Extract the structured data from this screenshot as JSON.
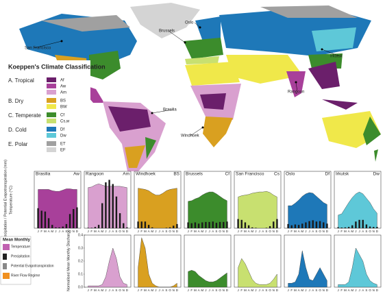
{
  "map": {
    "legend_title": "Koeppen's Climate Classification",
    "groups": [
      {
        "name": "A. Tropical",
        "classes": [
          {
            "code": "Af",
            "color": "#6b1f6b"
          },
          {
            "code": "Aw",
            "color": "#a8409a"
          },
          {
            "code": "Am",
            "color": "#d9a0cf"
          }
        ]
      },
      {
        "name": "B. Dry",
        "classes": [
          {
            "code": "BS",
            "color": "#d9a020"
          },
          {
            "code": "BW",
            "color": "#f0e84a"
          }
        ]
      },
      {
        "name": "C. Temperate",
        "classes": [
          {
            "code": "Cf",
            "color": "#3c8c2c"
          },
          {
            "code": "Cs,w",
            "color": "#c8e070"
          }
        ]
      },
      {
        "name": "D. Cold",
        "classes": [
          {
            "code": "Df",
            "color": "#1e78b8"
          },
          {
            "code": "Dw",
            "color": "#5ec8d8"
          }
        ]
      },
      {
        "name": "E. Polar",
        "classes": [
          {
            "code": "ET",
            "color": "#a0a0a0"
          },
          {
            "code": "EF",
            "color": "#d4d4d4"
          }
        ]
      }
    ],
    "cities": [
      "San Francisco",
      "Brussels",
      "Oslo",
      "Irkutsk",
      "Rangoon",
      "Brasilia",
      "Windhoek"
    ]
  },
  "panel_axes": {
    "upper_ylabel": "Precipitation / Potential Evapotranspiration (mm)",
    "upper_ylabel2": "Temperature (°C)",
    "lower_ylabel": "Normalised Mean Monthly Discharge",
    "temperature_ylim": [
      -40,
      40
    ],
    "precipitation_ylim": [
      0,
      600
    ],
    "discharge_ylim": [
      0,
      0.4
    ],
    "discharge_yticks": [
      {
        "value": 0,
        "label": "0.0"
      },
      0.1,
      0.2,
      0.3,
      0.4
    ],
    "months": [
      "J",
      "F",
      "M",
      "A",
      "M",
      "J",
      "J",
      "A",
      "S",
      "O",
      "N",
      "D"
    ]
  },
  "panel_legend": {
    "title": "Mean Monthly",
    "items": [
      "Temperature",
      "Precipitation",
      "Potential Evapotranspiration",
      "River Flow Regime"
    ]
  },
  "chart_data": [
    {
      "type": "climograph",
      "title": "Brasilia",
      "climate": "Aw",
      "color": "#a8409a",
      "temperature": [
        22,
        22,
        22,
        22,
        20,
        19,
        19,
        21,
        23,
        23,
        22,
        22
      ],
      "precipitation": [
        240,
        210,
        200,
        120,
        40,
        10,
        10,
        20,
        50,
        170,
        230,
        250
      ]
    },
    {
      "type": "climograph",
      "title": "Rangoon",
      "climate": "Am",
      "color": "#d9a0cf",
      "temperature": [
        25,
        26,
        29,
        31,
        29,
        27,
        27,
        27,
        27,
        27,
        26,
        25
      ],
      "precipitation": [
        5,
        5,
        15,
        40,
        300,
        550,
        580,
        530,
        380,
        180,
        60,
        10
      ],
      "discharge": [
        0.01,
        0.01,
        0.01,
        0.01,
        0.02,
        0.08,
        0.2,
        0.3,
        0.22,
        0.08,
        0.03,
        0.02
      ]
    },
    {
      "type": "climograph",
      "title": "Windhoek",
      "climate": "BS",
      "color": "#d9a020",
      "temperature": [
        24,
        23,
        22,
        20,
        16,
        13,
        13,
        16,
        20,
        22,
        23,
        24
      ],
      "precipitation": [
        80,
        80,
        80,
        40,
        10,
        0,
        0,
        0,
        5,
        10,
        30,
        50
      ],
      "discharge": [
        0.15,
        0.38,
        0.3,
        0.1,
        0.03,
        0.01,
        0,
        0,
        0,
        0,
        0.01,
        0.03
      ]
    },
    {
      "type": "climograph",
      "title": "Brussels",
      "climate": "Cf",
      "color": "#3c8c2c",
      "temperature": [
        3,
        4,
        7,
        9,
        13,
        16,
        18,
        18,
        15,
        11,
        7,
        4
      ],
      "precipitation": [
        70,
        60,
        70,
        55,
        70,
        75,
        75,
        80,
        65,
        75,
        75,
        80
      ],
      "discharge": [
        0.12,
        0.13,
        0.12,
        0.09,
        0.07,
        0.05,
        0.04,
        0.04,
        0.05,
        0.07,
        0.09,
        0.11
      ]
    },
    {
      "type": "climograph",
      "title": "San Francisco",
      "climate": "Cs",
      "color": "#c8e070",
      "temperature": [
        10,
        12,
        13,
        14,
        16,
        17,
        18,
        18,
        19,
        17,
        13,
        10
      ],
      "precipitation": [
        110,
        100,
        70,
        35,
        10,
        5,
        0,
        0,
        5,
        25,
        80,
        110
      ],
      "discharge": [
        0.15,
        0.22,
        0.18,
        0.12,
        0.06,
        0.03,
        0.02,
        0.02,
        0.02,
        0.03,
        0.06,
        0.1
      ]
    },
    {
      "type": "climograph",
      "title": "Oslo",
      "climate": "Df",
      "color": "#1e78b8",
      "temperature": [
        -4,
        -4,
        0,
        5,
        11,
        15,
        17,
        16,
        11,
        6,
        1,
        -2
      ],
      "precipitation": [
        50,
        35,
        45,
        40,
        55,
        70,
        85,
        95,
        80,
        85,
        70,
        55
      ],
      "discharge": [
        0.03,
        0.03,
        0.04,
        0.1,
        0.28,
        0.15,
        0.06,
        0.05,
        0.1,
        0.15,
        0.1,
        0.05
      ]
    },
    {
      "type": "climograph",
      "title": "Irkutsk",
      "climate": "Dw",
      "color": "#5ec8d8",
      "temperature": [
        -19,
        -17,
        -8,
        1,
        9,
        15,
        18,
        15,
        8,
        1,
        -9,
        -16
      ],
      "precipitation": [
        12,
        8,
        10,
        15,
        35,
        80,
        100,
        100,
        45,
        20,
        15,
        15
      ],
      "discharge": [
        0.02,
        0.02,
        0.02,
        0.04,
        0.15,
        0.3,
        0.25,
        0.2,
        0.1,
        0.05,
        0.03,
        0.02
      ]
    }
  ]
}
